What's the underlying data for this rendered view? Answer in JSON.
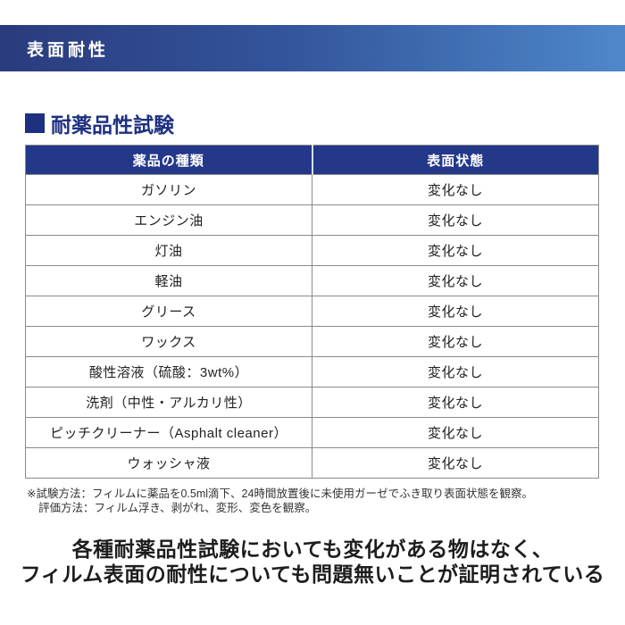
{
  "banner": {
    "title": "表面耐性",
    "gradient_left_color": "#2a3b7d",
    "gradient_right_color": "#4f88ca",
    "text_color": "#ffffff"
  },
  "section": {
    "heading": "耐薬品性試験",
    "heading_color": "#1e3180"
  },
  "table": {
    "header_bg_color": "#24388a",
    "headers": [
      "薬品の種類",
      "表面状態"
    ],
    "rows": [
      [
        "ガソリン",
        "変化なし"
      ],
      [
        "エンジン油",
        "変化なし"
      ],
      [
        "灯油",
        "変化なし"
      ],
      [
        "軽油",
        "変化なし"
      ],
      [
        "グリース",
        "変化なし"
      ],
      [
        "ワックス",
        "変化なし"
      ],
      [
        "酸性溶液（硫酸：3wt%）",
        "変化なし"
      ],
      [
        "洗剤（中性・アルカリ性）",
        "変化なし"
      ],
      [
        "ピッチクリーナー（Asphalt cleaner）",
        "変化なし"
      ],
      [
        "ウォッシャ液",
        "変化なし"
      ]
    ]
  },
  "footnotes": {
    "line1": "※試験方法：フィルムに薬品を0.5ml滴下、24時間放置後に未使用ガーゼでふき取り表面状態を観察。",
    "line2": "評価方法：フィルム浮き、剥がれ、変形、変色を観察。"
  },
  "conclusion": {
    "line1": "各種耐薬品性試験においても変化がある物はなく、",
    "line2": "フィルム表面の耐性についても問題無いことが証明されている"
  }
}
